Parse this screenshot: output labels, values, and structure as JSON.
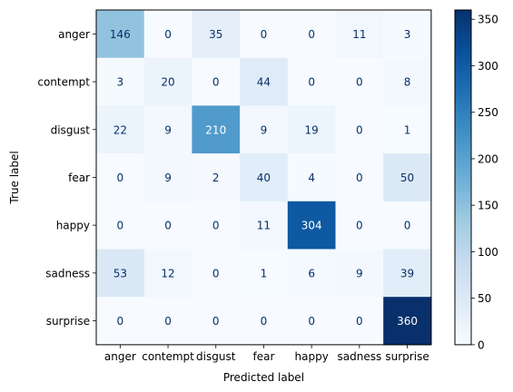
{
  "chart_data": {
    "type": "heatmap",
    "title": "",
    "xlabel": "Predicted label",
    "ylabel": "True label",
    "x_categories": [
      "anger",
      "contempt",
      "disgust",
      "fear",
      "happy",
      "sadness",
      "surprise"
    ],
    "y_categories": [
      "anger",
      "contempt",
      "disgust",
      "fear",
      "happy",
      "sadness",
      "surprise"
    ],
    "matrix": [
      [
        146,
        0,
        35,
        0,
        0,
        11,
        3
      ],
      [
        3,
        20,
        0,
        44,
        0,
        0,
        8
      ],
      [
        22,
        9,
        210,
        9,
        19,
        0,
        1
      ],
      [
        0,
        9,
        2,
        40,
        4,
        0,
        50
      ],
      [
        0,
        0,
        0,
        11,
        304,
        0,
        0
      ],
      [
        53,
        12,
        0,
        1,
        6,
        9,
        39
      ],
      [
        0,
        0,
        0,
        0,
        0,
        0,
        360
      ]
    ],
    "colormap": "Blues",
    "colorbar": {
      "vmin": 0,
      "vmax": 360,
      "ticks": [
        "0",
        "50",
        "100",
        "150",
        "200",
        "250",
        "300",
        "350"
      ]
    },
    "text_colors": {
      "light_cells": "#08306b",
      "dark_cells": "#ffffff"
    }
  }
}
